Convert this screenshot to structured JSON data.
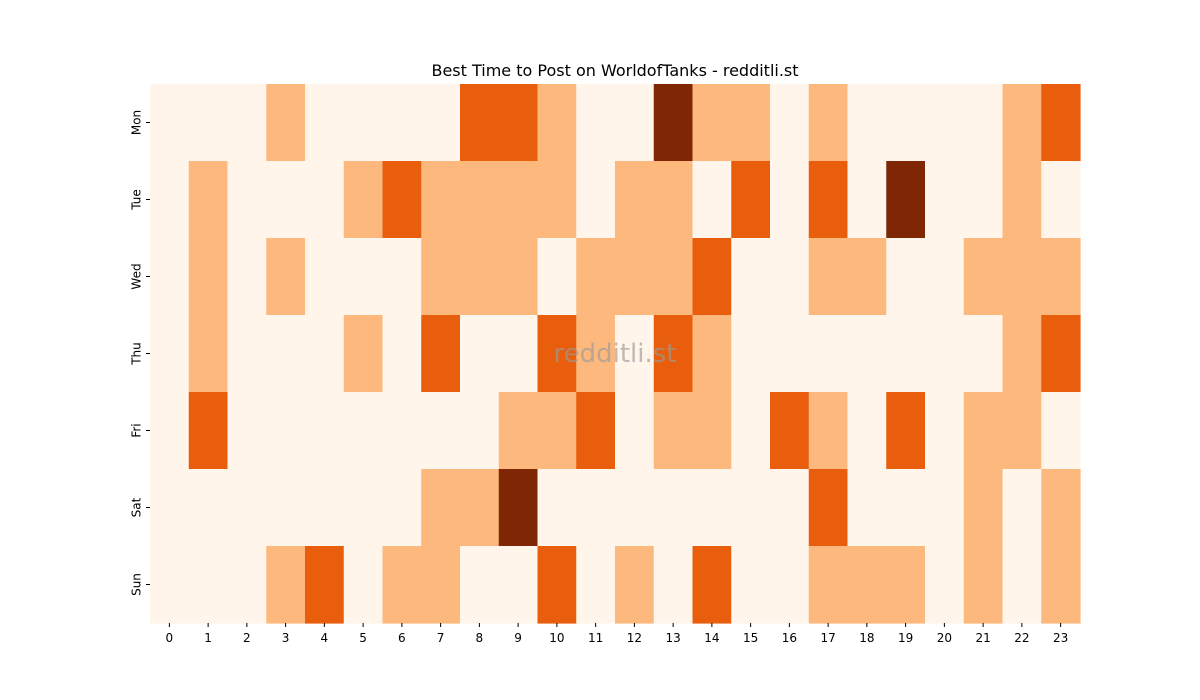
{
  "chart_data": {
    "type": "heatmap",
    "title": "Best Time to Post on WorldofTanks - redditli.st",
    "watermark": "redditli.st",
    "x": [
      "0",
      "1",
      "2",
      "3",
      "4",
      "5",
      "6",
      "7",
      "8",
      "9",
      "10",
      "11",
      "12",
      "13",
      "14",
      "15",
      "16",
      "17",
      "18",
      "19",
      "20",
      "21",
      "22",
      "23"
    ],
    "y": [
      "Mon",
      "Tue",
      "Wed",
      "Thu",
      "Fri",
      "Sat",
      "Sun"
    ],
    "values": [
      [
        0,
        0,
        0,
        1,
        0,
        0,
        0,
        0,
        2,
        2,
        1,
        0,
        0,
        3,
        1,
        1,
        0,
        1,
        0,
        0,
        0,
        0,
        1,
        2
      ],
      [
        0,
        1,
        0,
        0,
        0,
        1,
        2,
        1,
        1,
        1,
        1,
        0,
        1,
        1,
        0,
        2,
        0,
        2,
        0,
        3,
        0,
        0,
        1,
        0
      ],
      [
        0,
        1,
        0,
        1,
        0,
        0,
        0,
        1,
        1,
        1,
        0,
        1,
        1,
        1,
        2,
        0,
        0,
        1,
        1,
        0,
        0,
        1,
        1,
        1
      ],
      [
        0,
        1,
        0,
        0,
        0,
        1,
        0,
        2,
        0,
        0,
        2,
        1,
        0,
        2,
        1,
        0,
        0,
        0,
        0,
        0,
        0,
        0,
        1,
        2
      ],
      [
        0,
        2,
        0,
        0,
        0,
        0,
        0,
        0,
        0,
        1,
        1,
        2,
        0,
        1,
        1,
        0,
        2,
        1,
        0,
        2,
        0,
        1,
        1,
        0
      ],
      [
        0,
        0,
        0,
        0,
        0,
        0,
        0,
        1,
        1,
        3,
        0,
        0,
        0,
        0,
        0,
        0,
        0,
        2,
        0,
        0,
        0,
        1,
        0,
        1
      ],
      [
        0,
        0,
        0,
        1,
        2,
        0,
        1,
        1,
        0,
        0,
        2,
        0,
        1,
        0,
        2,
        0,
        0,
        1,
        1,
        1,
        0,
        1,
        0,
        1
      ]
    ],
    "colormap": [
      "#fff5eb",
      "#fdb97d",
      "#e95e0d",
      "#7f2704"
    ],
    "colorbar": false,
    "grid": false
  }
}
